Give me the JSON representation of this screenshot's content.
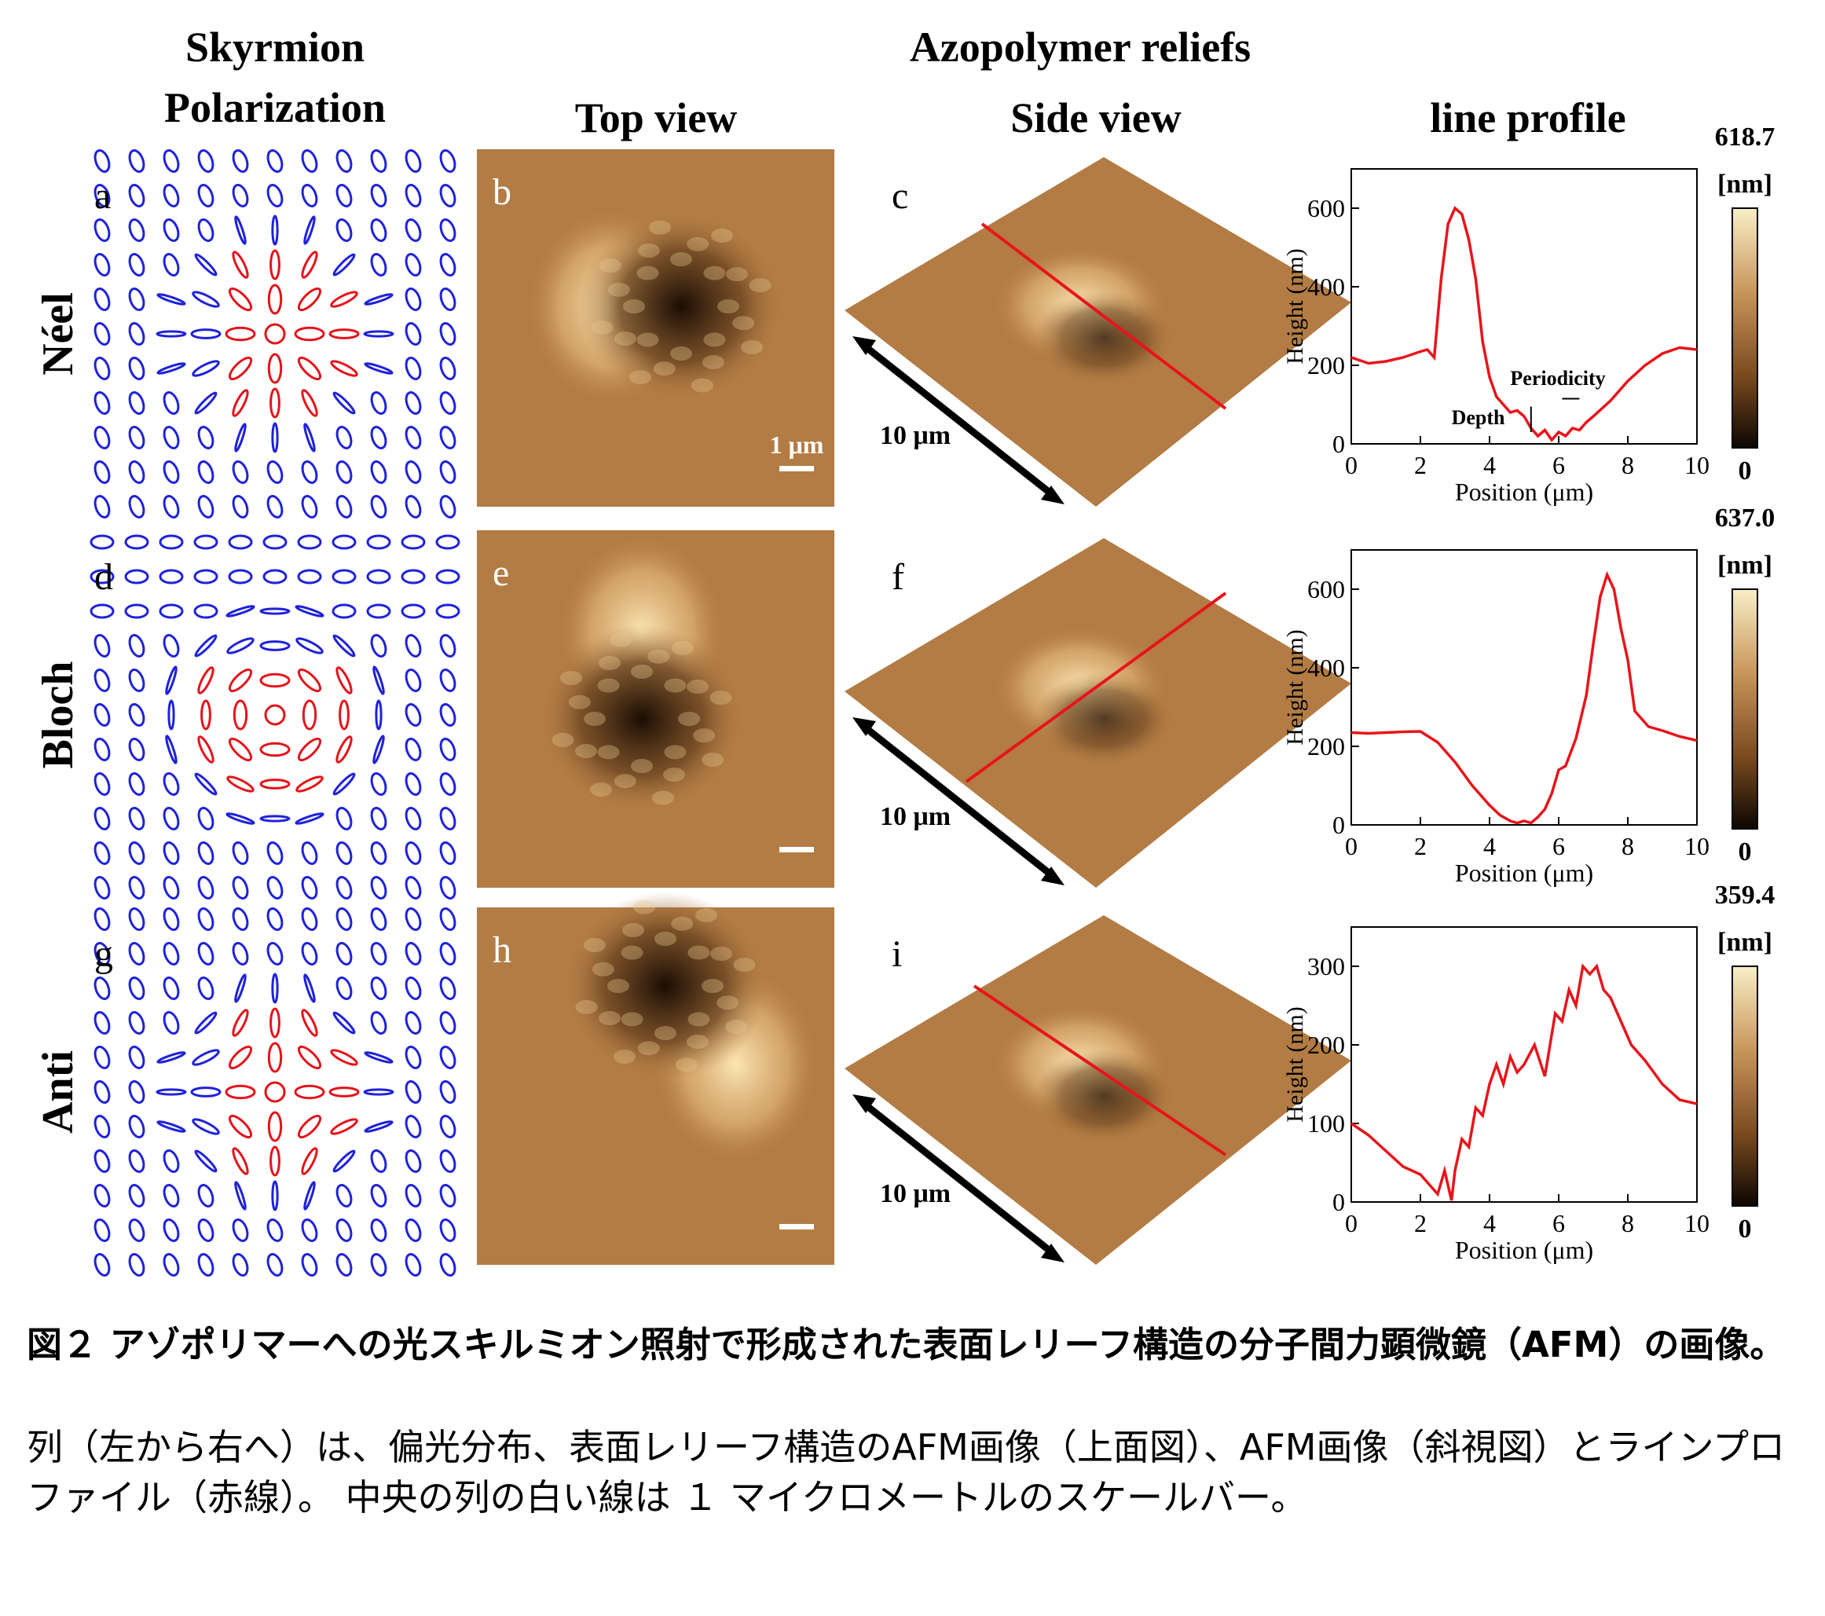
{
  "headers": {
    "col1_line1": "Skyrmion",
    "col1_line2": "Polarization",
    "azopolymer": "Azopolymer reliefs",
    "top_view": "Top view",
    "side_view": "Side view",
    "line_profile": "line profile"
  },
  "rows": [
    {
      "name": "Néel",
      "letters": [
        "a",
        "b",
        "c"
      ],
      "scale_label": "1 μm",
      "arrow_label": "10 μm",
      "colorbar": {
        "max": "618.7",
        "unit": "[nm]",
        "min": "0"
      }
    },
    {
      "name": "Bloch",
      "letters": [
        "d",
        "e",
        "f"
      ],
      "scale_label": "",
      "arrow_label": "10 μm",
      "colorbar": {
        "max": "637.0",
        "unit": "[nm]",
        "min": "0"
      }
    },
    {
      "name": "Anti",
      "letters": [
        "g",
        "h",
        "i"
      ],
      "scale_label": "",
      "arrow_label": "10 μm",
      "colorbar": {
        "max": "359.4",
        "unit": "[nm]",
        "min": "0"
      }
    }
  ],
  "chart_data": [
    {
      "type": "line",
      "xlabel": "Position (μm)",
      "ylabel": "Height (nm)",
      "xlim": [
        0,
        10
      ],
      "ylim": [
        0,
        700
      ],
      "xticks": [
        0,
        2,
        4,
        6,
        8,
        10
      ],
      "yticks": [
        0,
        200,
        400,
        600
      ],
      "series_color": "#e8141b",
      "annotations": [
        "Periodicity",
        "Depth"
      ],
      "x": [
        0,
        0.5,
        1,
        1.5,
        2,
        2.2,
        2.4,
        2.6,
        2.8,
        3.0,
        3.2,
        3.4,
        3.6,
        3.8,
        4.0,
        4.2,
        4.4,
        4.6,
        4.8,
        5.0,
        5.2,
        5.4,
        5.6,
        5.8,
        6.0,
        6.2,
        6.4,
        6.6,
        6.8,
        7.0,
        7.5,
        8.0,
        8.5,
        9.0,
        9.5,
        10
      ],
      "y": [
        220,
        205,
        210,
        220,
        235,
        240,
        220,
        420,
        560,
        600,
        585,
        520,
        420,
        260,
        170,
        120,
        100,
        80,
        85,
        70,
        40,
        20,
        35,
        10,
        30,
        20,
        40,
        35,
        55,
        70,
        110,
        160,
        200,
        230,
        245,
        240
      ]
    },
    {
      "type": "line",
      "xlabel": "Position (μm)",
      "ylabel": "Height (nm)",
      "xlim": [
        0,
        10
      ],
      "ylim": [
        0,
        700
      ],
      "xticks": [
        0,
        2,
        4,
        6,
        8,
        10
      ],
      "yticks": [
        0,
        200,
        400,
        600
      ],
      "series_color": "#e8141b",
      "annotations": [],
      "x": [
        0,
        0.5,
        1,
        1.5,
        2,
        2.5,
        3,
        3.5,
        4,
        4.3,
        4.6,
        4.8,
        5.0,
        5.2,
        5.4,
        5.6,
        5.8,
        6.0,
        6.2,
        6.5,
        6.8,
        7.0,
        7.2,
        7.4,
        7.6,
        7.8,
        8.0,
        8.2,
        8.4,
        8.6,
        9.0,
        9.5,
        10
      ],
      "y": [
        235,
        233,
        235,
        237,
        238,
        210,
        160,
        100,
        50,
        25,
        10,
        5,
        10,
        5,
        20,
        40,
        80,
        140,
        150,
        220,
        330,
        460,
        580,
        637,
        600,
        500,
        420,
        290,
        270,
        250,
        240,
        225,
        215
      ]
    },
    {
      "type": "line",
      "xlabel": "Position (μm)",
      "ylabel": "Height (nm)",
      "xlim": [
        0,
        10
      ],
      "ylim": [
        0,
        350
      ],
      "xticks": [
        0,
        2,
        4,
        6,
        8,
        10
      ],
      "yticks": [
        0,
        100,
        200,
        300
      ],
      "series_color": "#e8141b",
      "annotations": [],
      "x": [
        0,
        0.5,
        1.0,
        1.5,
        2.0,
        2.3,
        2.5,
        2.7,
        2.9,
        3.0,
        3.2,
        3.4,
        3.6,
        3.8,
        4.0,
        4.2,
        4.4,
        4.6,
        4.8,
        5.0,
        5.3,
        5.6,
        5.9,
        6.1,
        6.3,
        6.5,
        6.7,
        6.9,
        7.1,
        7.3,
        7.5,
        7.8,
        8.1,
        8.5,
        9.0,
        9.5,
        10
      ],
      "y": [
        100,
        85,
        65,
        45,
        35,
        20,
        10,
        40,
        2,
        40,
        80,
        70,
        120,
        110,
        150,
        175,
        150,
        185,
        165,
        175,
        200,
        160,
        240,
        230,
        270,
        250,
        300,
        290,
        300,
        270,
        260,
        230,
        200,
        180,
        150,
        130,
        125
      ]
    }
  ],
  "caption": {
    "bold": "図２ アゾポリマーへの光スキルミオン照射で形成された表面レリーフ構造の分子間力顕微鏡（AFM）の画像。",
    "body": "列（左から右へ）は、偏光分布、表面レリーフ構造のAFM画像（上面図）、AFM画像（斜視図）とラインプロファイル（赤線）。 中央の列の白い線は １ マイクロメートルのスケールバー。"
  }
}
